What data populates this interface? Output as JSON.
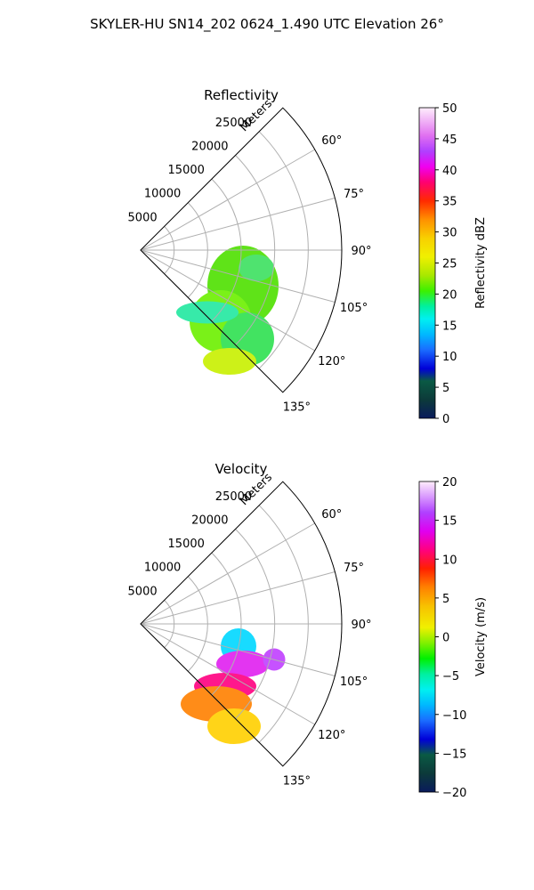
{
  "figure_title": "SKYLER-HU  SN14_202  0624_1.490 UTC Elevation 26°",
  "chart_data": [
    {
      "type": "polar-sector",
      "title": "Reflectivity",
      "radial_label": "Meters",
      "range_ticks": [
        5000,
        10000,
        15000,
        20000,
        25000
      ],
      "range_max": 30000,
      "angle_ticks": [
        "60°",
        "75°",
        "90°",
        "105°",
        "120°",
        "135°"
      ],
      "angle_range": [
        45,
        135
      ],
      "colorbar": {
        "label": "Reflectivity dBZ",
        "ticks": [
          "0",
          "5",
          "10",
          "15",
          "20",
          "25",
          "30",
          "35",
          "40",
          "45",
          "50"
        ],
        "min": 0,
        "max": 50
      },
      "dominant_values": "10–25 dBZ"
    },
    {
      "type": "polar-sector",
      "title": "Velocity",
      "radial_label": "Meters",
      "range_ticks": [
        5000,
        10000,
        15000,
        20000,
        25000
      ],
      "range_max": 30000,
      "angle_ticks": [
        "60°",
        "75°",
        "90°",
        "105°",
        "120°",
        "135°"
      ],
      "angle_range": [
        45,
        135
      ],
      "colorbar": {
        "label": "Velocity (m/s)",
        "ticks": [
          "−20",
          "−15",
          "−10",
          "−5",
          "0",
          "5",
          "10",
          "15",
          "20"
        ],
        "min": -20,
        "max": 20
      },
      "dominant_values": "−12 to 18 m/s"
    }
  ]
}
